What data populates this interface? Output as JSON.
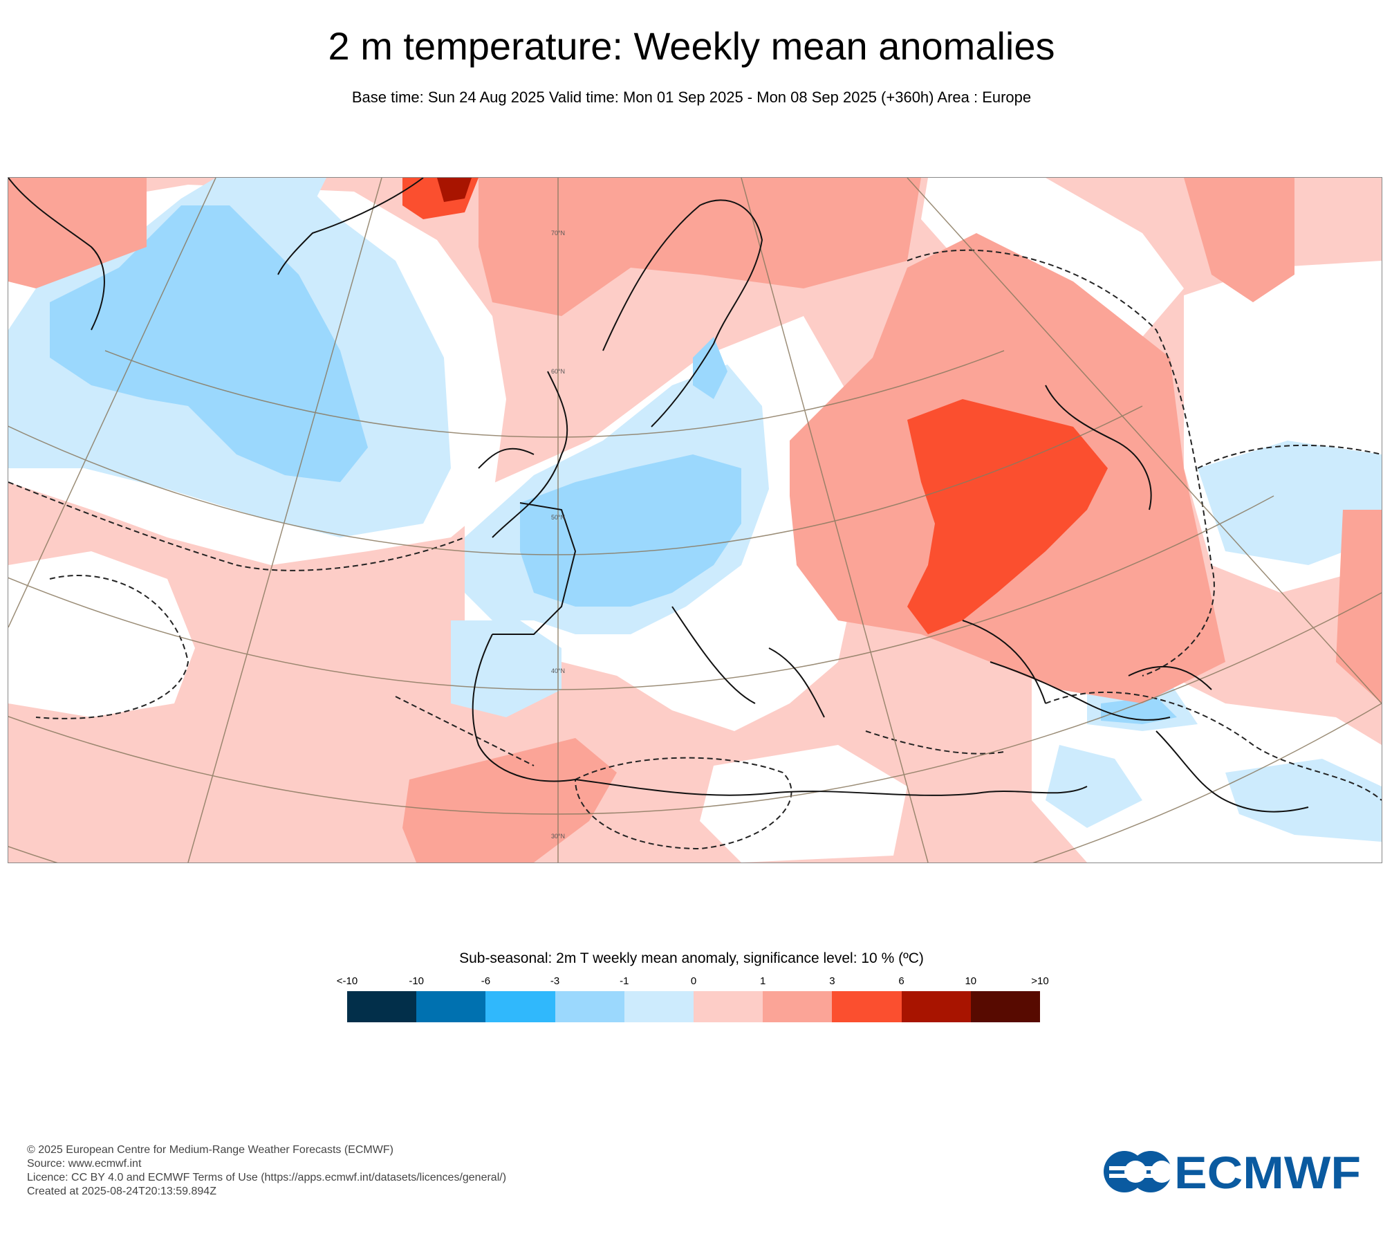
{
  "header": {
    "title": "2 m temperature: Weekly mean anomalies",
    "subtitle": "Base time: Sun 24 Aug 2025 Valid time: Mon 01 Sep 2025 - Mon 08 Sep 2025 (+360h) Area : Europe"
  },
  "map": {
    "graticule_labels": [
      "70°N",
      "60°N",
      "50°N",
      "40°N",
      "30°N"
    ]
  },
  "legend": {
    "title": "Sub-seasonal: 2m T weekly mean anomaly, significance level: 10 % (ºC)",
    "ticks": [
      "<-10",
      "-10",
      "-6",
      "-3",
      "-1",
      "0",
      "1",
      "3",
      "6",
      "10",
      ">10"
    ],
    "colors": [
      "#022f4a",
      "#0071b0",
      "#30b8fc",
      "#9bd8fd",
      "#cdebfd",
      "#fdcdc7",
      "#fba497",
      "#fb4f2f",
      "#a81400",
      "#570a00"
    ]
  },
  "footer": {
    "copyright": "© 2025 European Centre for Medium-Range Weather Forecasts (ECMWF)",
    "source": "Source: www.ecmwf.int",
    "licence": "Licence: CC BY 4.0 and ECMWF Terms of Use (https://apps.ecmwf.int/datasets/licences/general/)",
    "created": "Created at 2025-08-24T20:13:59.894Z"
  },
  "logo": {
    "text": "ECMWF",
    "color": "#0a5aa0"
  }
}
